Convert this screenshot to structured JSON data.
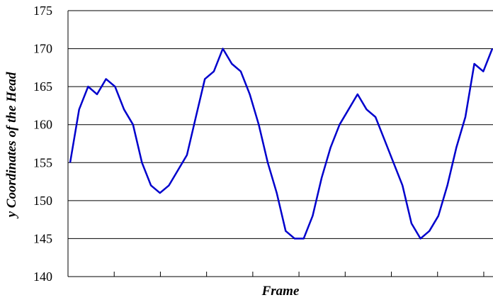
{
  "chart_data": {
    "type": "line",
    "title": "",
    "xlabel": "Frame",
    "ylabel": "y Coordinates of the Head",
    "ylim": [
      140,
      175
    ],
    "yticks": [
      140,
      145,
      150,
      155,
      160,
      165,
      170,
      175
    ],
    "grid": "horizontal",
    "legend": "none",
    "series": [
      {
        "color": "#0000cc",
        "x": [
          1,
          2,
          3,
          4,
          5,
          6,
          7,
          8,
          9,
          10,
          11,
          12,
          13,
          14,
          15,
          16,
          17,
          18,
          19,
          20,
          21,
          22,
          23,
          24,
          25,
          26,
          27,
          28,
          29,
          30,
          31,
          32,
          33,
          34,
          35,
          36,
          37,
          38,
          39,
          40,
          41,
          42,
          43,
          44,
          45,
          46,
          47,
          48
        ],
        "values": [
          155,
          162,
          165,
          164,
          166,
          165,
          162,
          160,
          155,
          152,
          151,
          152,
          154,
          156,
          161,
          166,
          167,
          170,
          168,
          167,
          164,
          160,
          155,
          151,
          146,
          145,
          145,
          148,
          153,
          157,
          160,
          162,
          164,
          162,
          161,
          158,
          155,
          152,
          147,
          145,
          146,
          148,
          152,
          157,
          161,
          168,
          167,
          170
        ]
      }
    ]
  }
}
